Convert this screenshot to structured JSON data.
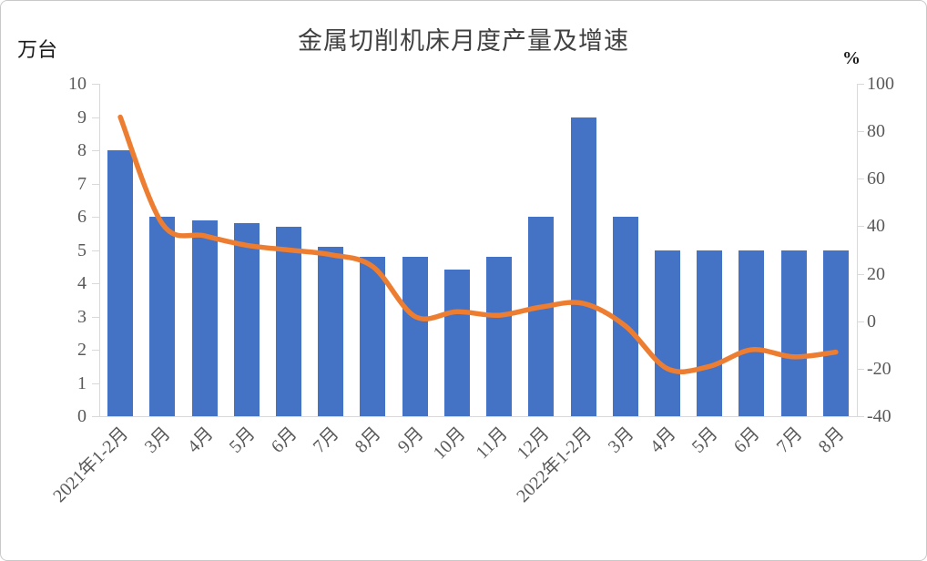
{
  "chart": {
    "title": "金属切削机床月度产量及增速",
    "left_axis": {
      "unit": "万台",
      "ticks": [
        "10",
        "9",
        "8",
        "7",
        "6",
        "5",
        "4",
        "3",
        "2",
        "1",
        "0"
      ],
      "min": 0,
      "max": 10
    },
    "right_axis": {
      "unit": "%",
      "ticks": [
        "100",
        "80",
        "60",
        "40",
        "20",
        "0",
        "-20",
        "-40"
      ],
      "min": -40,
      "max": 100
    },
    "colors": {
      "bar": "#4472C4",
      "line": "#ED7D31",
      "axis": "#d9d9d9",
      "tick_text": "#595959",
      "title_text": "#404040"
    }
  },
  "chart_data": {
    "type": "bar",
    "title": "金属切削机床月度产量及增速",
    "categories": [
      "2021年1-2月",
      "3月",
      "4月",
      "5月",
      "6月",
      "7月",
      "8月",
      "9月",
      "10月",
      "11月",
      "12月",
      "2022年1-2月",
      "3月",
      "4月",
      "5月",
      "6月",
      "7月",
      "8月"
    ],
    "series": [
      {
        "name": "万台",
        "type": "bar",
        "axis": "left",
        "values": [
          8.0,
          6.0,
          5.9,
          5.8,
          5.7,
          5.1,
          4.8,
          4.8,
          4.4,
          4.8,
          6.0,
          9.0,
          6.0,
          5.0,
          5.0,
          5.0,
          5.0,
          5.0
        ]
      },
      {
        "name": "%",
        "type": "line",
        "axis": "right",
        "values": [
          86,
          41,
          36,
          32,
          30,
          28,
          23,
          2,
          4,
          2.5,
          6,
          7.5,
          -2,
          -20,
          -19,
          -12,
          -15,
          -13
        ]
      }
    ],
    "left_ylim": [
      0,
      10
    ],
    "right_ylim": [
      -40,
      100
    ],
    "grid": false,
    "legend": "none"
  }
}
